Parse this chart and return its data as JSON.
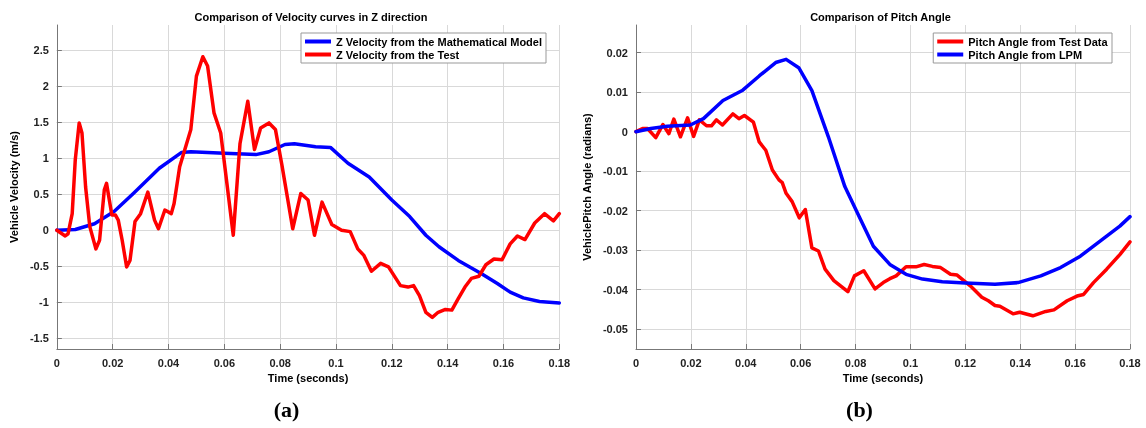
{
  "chart_data": [
    {
      "type": "line",
      "title": "Comparison of Velocity curves in Z direction",
      "xlabel": "Time (seconds)",
      "ylabel": "Vehicle Velocity (m/s)",
      "annotations": [
        "(a)"
      ],
      "xlim": [
        0,
        0.18
      ],
      "xticks": [
        0,
        0.02,
        0.04,
        0.06,
        0.08,
        0.1,
        0.12,
        0.14,
        0.16,
        0.18
      ],
      "ylim": [
        -1.65,
        2.85
      ],
      "yticks": [
        -1.5,
        -1,
        -0.5,
        0,
        0.5,
        1,
        1.5,
        2,
        2.5
      ],
      "grid": true,
      "legend": "top right",
      "marker": "none",
      "line_style": "solid",
      "series": [
        {
          "name": "Z Velocity from the Mathematical Model",
          "color": "#0000ff",
          "x": [
            0,
            0.0066,
            0.0135,
            0.0205,
            0.0274,
            0.0367,
            0.0447,
            0.048,
            0.06,
            0.0713,
            0.076,
            0.0817,
            0.0851,
            0.0927,
            0.098,
            0.1043,
            0.1119,
            0.12,
            0.1264,
            0.1322,
            0.1369,
            0.1438,
            0.152,
            0.1578,
            0.1624,
            0.1671,
            0.1729,
            0.18
          ],
          "values": [
            0,
            0.01,
            0.09,
            0.26,
            0.51,
            0.86,
            1.08,
            1.09,
            1.07,
            1.05,
            1.09,
            1.19,
            1.2,
            1.16,
            1.15,
            0.93,
            0.74,
            0.42,
            0.19,
            -0.07,
            -0.23,
            -0.42,
            -0.6,
            -0.74,
            -0.86,
            -0.94,
            -0.99,
            -1.01
          ]
        },
        {
          "name": "Z Velocity from the Test",
          "color": "#ff0000",
          "x": [
            0,
            0.003,
            0.004,
            0.0055,
            0.0066,
            0.008,
            0.009,
            0.0103,
            0.0118,
            0.014,
            0.0153,
            0.017,
            0.0178,
            0.0197,
            0.021,
            0.022,
            0.0234,
            0.025,
            0.0262,
            0.028,
            0.03,
            0.0326,
            0.035,
            0.0364,
            0.0387,
            0.041,
            0.042,
            0.044,
            0.048,
            0.05,
            0.0523,
            0.054,
            0.0563,
            0.0587,
            0.0632,
            0.0656,
            0.0684,
            0.0708,
            0.073,
            0.076,
            0.0783,
            0.0806,
            0.0845,
            0.0874,
            0.09,
            0.0923,
            0.095,
            0.0985,
            0.102,
            0.1051,
            0.1078,
            0.11,
            0.1127,
            0.116,
            0.1188,
            0.1231,
            0.1258,
            0.1278,
            0.1299,
            0.1322,
            0.1345,
            0.1366,
            0.1392,
            0.1415,
            0.1438,
            0.1462,
            0.1485,
            0.1512,
            0.1537,
            0.1566,
            0.1595,
            0.1624,
            0.165,
            0.1677,
            0.1712,
            0.1747,
            0.1779,
            0.18
          ],
          "values": [
            0,
            -0.08,
            -0.05,
            0.23,
            0.98,
            1.49,
            1.35,
            0.6,
            0.05,
            -0.26,
            -0.14,
            0.56,
            0.65,
            0.21,
            0.21,
            0.14,
            -0.14,
            -0.51,
            -0.42,
            0.12,
            0.23,
            0.53,
            0.14,
            0.02,
            0.28,
            0.23,
            0.37,
            0.88,
            1.4,
            2.14,
            2.41,
            2.28,
            1.63,
            1.35,
            -0.07,
            1.2,
            1.79,
            1.12,
            1.42,
            1.49,
            1.4,
            0.91,
            0.02,
            0.51,
            0.42,
            -0.07,
            0.39,
            0.08,
            0,
            -0.02,
            -0.26,
            -0.35,
            -0.57,
            -0.46,
            -0.51,
            -0.77,
            -0.79,
            -0.77,
            -0.91,
            -1.14,
            -1.21,
            -1.14,
            -1.1,
            -1.11,
            -0.95,
            -0.79,
            -0.67,
            -0.64,
            -0.48,
            -0.4,
            -0.41,
            -0.19,
            -0.08,
            -0.13,
            0.1,
            0.23,
            0.13,
            0.23
          ]
        }
      ]
    },
    {
      "type": "line",
      "title": "Comparison of Pitch Angle",
      "xlabel": "Time (seconds)",
      "ylabel": "VehiclePitch Angle (radians)",
      "annotations": [
        "(b)"
      ],
      "xlim": [
        0,
        0.18
      ],
      "xticks": [
        0,
        0.02,
        0.04,
        0.06,
        0.08,
        0.1,
        0.12,
        0.14,
        0.16,
        0.18
      ],
      "ylim": [
        -0.055,
        0.027
      ],
      "yticks": [
        -0.05,
        -0.04,
        -0.03,
        -0.02,
        -0.01,
        0,
        0.01,
        0.02
      ],
      "grid": true,
      "legend": "top right",
      "marker": "none",
      "line_style": "solid",
      "series": [
        {
          "name": "Pitch Angle from Test Data",
          "color": "#ff0000",
          "x": [
            0,
            0.0024,
            0.0042,
            0.0072,
            0.0098,
            0.012,
            0.0138,
            0.0162,
            0.0188,
            0.021,
            0.0231,
            0.0257,
            0.0275,
            0.0293,
            0.0315,
            0.0353,
            0.0375,
            0.0395,
            0.0428,
            0.0449,
            0.0473,
            0.0497,
            0.0521,
            0.0533,
            0.0547,
            0.0569,
            0.0595,
            0.0617,
            0.0641,
            0.0665,
            0.0689,
            0.0721,
            0.0772,
            0.0796,
            0.083,
            0.0871,
            0.0901,
            0.0925,
            0.0948,
            0.0984,
            0.102,
            0.105,
            0.108,
            0.111,
            0.1146,
            0.117,
            0.1218,
            0.126,
            0.1284,
            0.1308,
            0.1326,
            0.1374,
            0.1398,
            0.1446,
            0.1493,
            0.1523,
            0.1571,
            0.1607,
            0.1631,
            0.1667,
            0.1715,
            0.1763,
            0.18
          ],
          "values": [
            0,
            0.0008,
            0.0008,
            -0.0015,
            0.0018,
            -0.0005,
            0.0032,
            -0.0013,
            0.0035,
            -0.0012,
            0.003,
            0.0015,
            0.0015,
            0.003,
            0.0017,
            0.0045,
            0.0033,
            0.0041,
            0.0024,
            -0.0026,
            -0.0047,
            -0.0097,
            -0.0122,
            -0.0129,
            -0.0156,
            -0.0177,
            -0.0218,
            -0.0197,
            -0.0294,
            -0.0302,
            -0.0348,
            -0.0377,
            -0.0405,
            -0.0365,
            -0.0352,
            -0.0398,
            -0.0382,
            -0.0372,
            -0.0365,
            -0.0342,
            -0.0342,
            -0.0336,
            -0.0341,
            -0.0344,
            -0.0361,
            -0.0363,
            -0.039,
            -0.0419,
            -0.0428,
            -0.044,
            -0.0442,
            -0.0461,
            -0.0457,
            -0.0466,
            -0.0455,
            -0.0451,
            -0.0428,
            -0.0416,
            -0.0412,
            -0.0382,
            -0.0348,
            -0.0311,
            -0.0279
          ]
        },
        {
          "name": "Pitch Angle from LPM",
          "color": "#0000ff",
          "x": [
            0,
            0.0054,
            0.0114,
            0.0198,
            0.0246,
            0.0317,
            0.0389,
            0.0449,
            0.0509,
            0.0547,
            0.0593,
            0.0641,
            0.0701,
            0.0761,
            0.082,
            0.0865,
            0.0925,
            0.0984,
            0.1044,
            0.1116,
            0.12,
            0.1308,
            0.1392,
            0.1475,
            0.1547,
            0.1619,
            0.1691,
            0.1763,
            0.18
          ],
          "values": [
            0,
            0.0008,
            0.0014,
            0.0017,
            0.0033,
            0.0079,
            0.0105,
            0.0141,
            0.0175,
            0.0183,
            0.0162,
            0.0104,
            -0.0013,
            -0.0139,
            -0.0225,
            -0.029,
            -0.0336,
            -0.0361,
            -0.0373,
            -0.038,
            -0.0383,
            -0.0386,
            -0.0382,
            -0.0365,
            -0.0344,
            -0.0315,
            -0.0277,
            -0.0239,
            -0.0215
          ]
        }
      ]
    }
  ]
}
